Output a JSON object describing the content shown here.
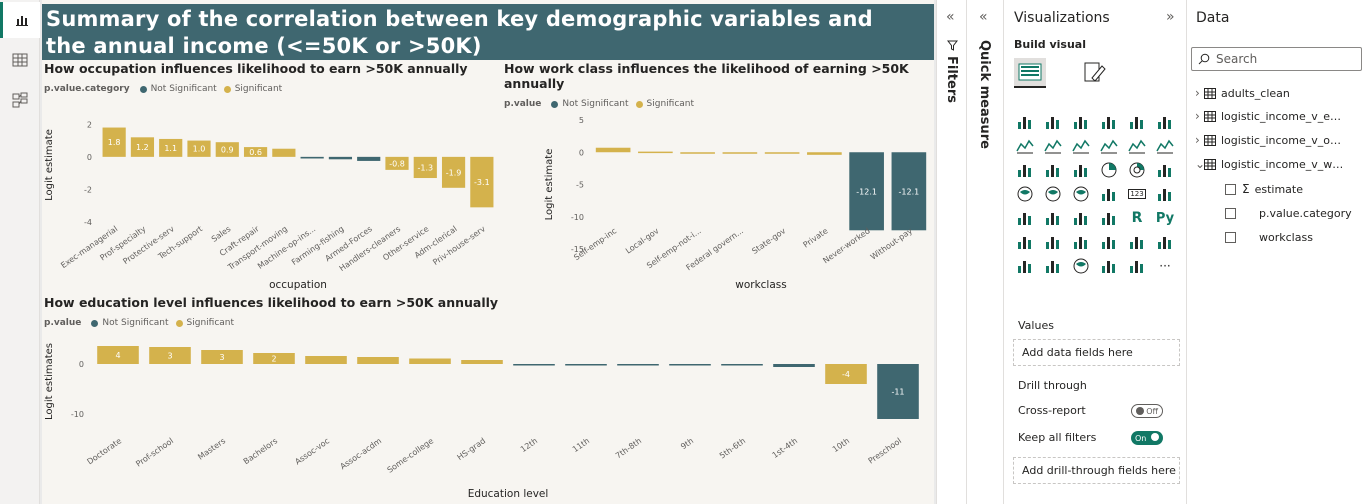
{
  "report": {
    "title_line1": "Summary of the correlation between key demographic variables and",
    "title_line2": "the annual income (<=50K or >50K)"
  },
  "legend": {
    "title": "p.value.category",
    "title_short": "p.value",
    "not_significant": "Not Significant",
    "significant": "Significant",
    "color_not_significant": "#3f6770",
    "color_significant": "#d4b24c"
  },
  "chart_data": [
    {
      "type": "bar",
      "title": "How occupation influences likelihood to earn >50K annually",
      "xlabel": "occupation",
      "ylabel": "Logit estimate",
      "legend_title": "p.value.category",
      "ylim": [
        -4,
        3
      ],
      "yticks": [
        2,
        0,
        -2,
        -4
      ],
      "categories": [
        "Exec-managerial",
        "Prof-specialty",
        "Protective-serv",
        "Tech-support",
        "Sales",
        "Craft-repair",
        "Transport-moving",
        "Machine-op-ins...",
        "Farming-fishing",
        "Armed-Forces",
        "Handlers-cleaners",
        "Other-service",
        "Adm-clerical",
        "Priv-house-serv"
      ],
      "values": [
        1.8,
        1.2,
        1.1,
        1.0,
        0.9,
        0.6,
        0.5,
        -0.1,
        -0.15,
        -0.25,
        -0.8,
        -1.3,
        -1.9,
        -3.1
      ],
      "labels": [
        "1.8",
        "1.2",
        "1.1",
        "1.0",
        "0.9",
        "0.6",
        "",
        "",
        "",
        "",
        "-0.8",
        "-1.3",
        "-1.9",
        "-3.1"
      ],
      "significance": [
        "Significant",
        "Significant",
        "Significant",
        "Significant",
        "Significant",
        "Significant",
        "Significant",
        "Not Significant",
        "Not Significant",
        "Not Significant",
        "Significant",
        "Significant",
        "Significant",
        "Significant"
      ]
    },
    {
      "type": "bar",
      "title_line1": "How work class influences the likelihood of earning >50K",
      "title_line2": "annually",
      "xlabel": "workclass",
      "ylabel": "Logit estimate",
      "legend_title": "p.value",
      "ylim": [
        -15,
        5
      ],
      "yticks": [
        5,
        0,
        -5,
        -10,
        -15
      ],
      "categories": [
        "Self-emp-inc",
        "Local-gov",
        "Self-emp-not-i...",
        "Federal govern...",
        "State-gov",
        "Private",
        "Never-worked",
        "Without-pay"
      ],
      "values": [
        0.7,
        0.1,
        0.0,
        -0.1,
        -0.2,
        -0.4,
        -12.1,
        -12.1
      ],
      "labels": [
        "",
        "",
        "",
        "",
        "",
        "",
        "-12.1",
        "-12.1"
      ],
      "significance": [
        "Significant",
        "Significant",
        "Significant",
        "Significant",
        "Significant",
        "Significant",
        "Not Significant",
        "Not Significant"
      ]
    },
    {
      "type": "bar",
      "title": "How education level influences likelihood to earn >50K annually",
      "xlabel": "Education level",
      "ylabel": "Logit estimates",
      "legend_title": "p.value",
      "ylim": [
        -12,
        5
      ],
      "yticks": [
        0,
        -10
      ],
      "categories": [
        "Doctorate",
        "Prof-school",
        "Masters",
        "Bachelors",
        "Assoc-voc",
        "Assoc-acdm",
        "Some-college",
        "HS-grad",
        "12th",
        "11th",
        "7th-8th",
        "9th",
        "5th-6th",
        "1st-4th",
        "10th",
        "Preschool"
      ],
      "values": [
        3.6,
        3.4,
        2.8,
        2.2,
        1.6,
        1.4,
        1.1,
        0.8,
        -0.1,
        -0.15,
        -0.2,
        -0.2,
        -0.3,
        -0.6,
        -4.0,
        -11.0
      ],
      "labels": [
        "4",
        "3",
        "3",
        "2",
        "",
        "",
        "",
        "",
        "",
        "",
        "",
        "",
        "",
        "",
        "-4",
        "-11"
      ],
      "significance": [
        "Significant",
        "Significant",
        "Significant",
        "Significant",
        "Significant",
        "Significant",
        "Significant",
        "Significant",
        "Not Significant",
        "Not Significant",
        "Not Significant",
        "Not Significant",
        "Not Significant",
        "Not Significant",
        "Significant",
        "Not Significant"
      ]
    }
  ],
  "panes": {
    "filters_label": "Filters",
    "quick_measure_label": "Quick measure",
    "visualizations": {
      "title": "Visualizations",
      "build_visual": "Build visual",
      "values_label": "Values",
      "add_data_fields": "Add data fields here",
      "drill_through": "Drill through",
      "cross_report": "Cross-report",
      "cross_report_state": "Off",
      "keep_all_filters": "Keep all filters",
      "keep_all_filters_state": "On",
      "add_drill_through": "Add drill-through fields here",
      "more": "···",
      "r_label": "R",
      "py_label": "Py",
      "card_label": "123"
    },
    "data": {
      "title": "Data",
      "search_placeholder": "Search",
      "tables": [
        "adults_clean",
        "logistic_income_v_educ...",
        "logistic_income_v_occu...",
        "logistic_income_v_work..."
      ],
      "fields": [
        "estimate",
        "p.value.category",
        "workclass"
      ],
      "sigma": "Σ"
    }
  }
}
